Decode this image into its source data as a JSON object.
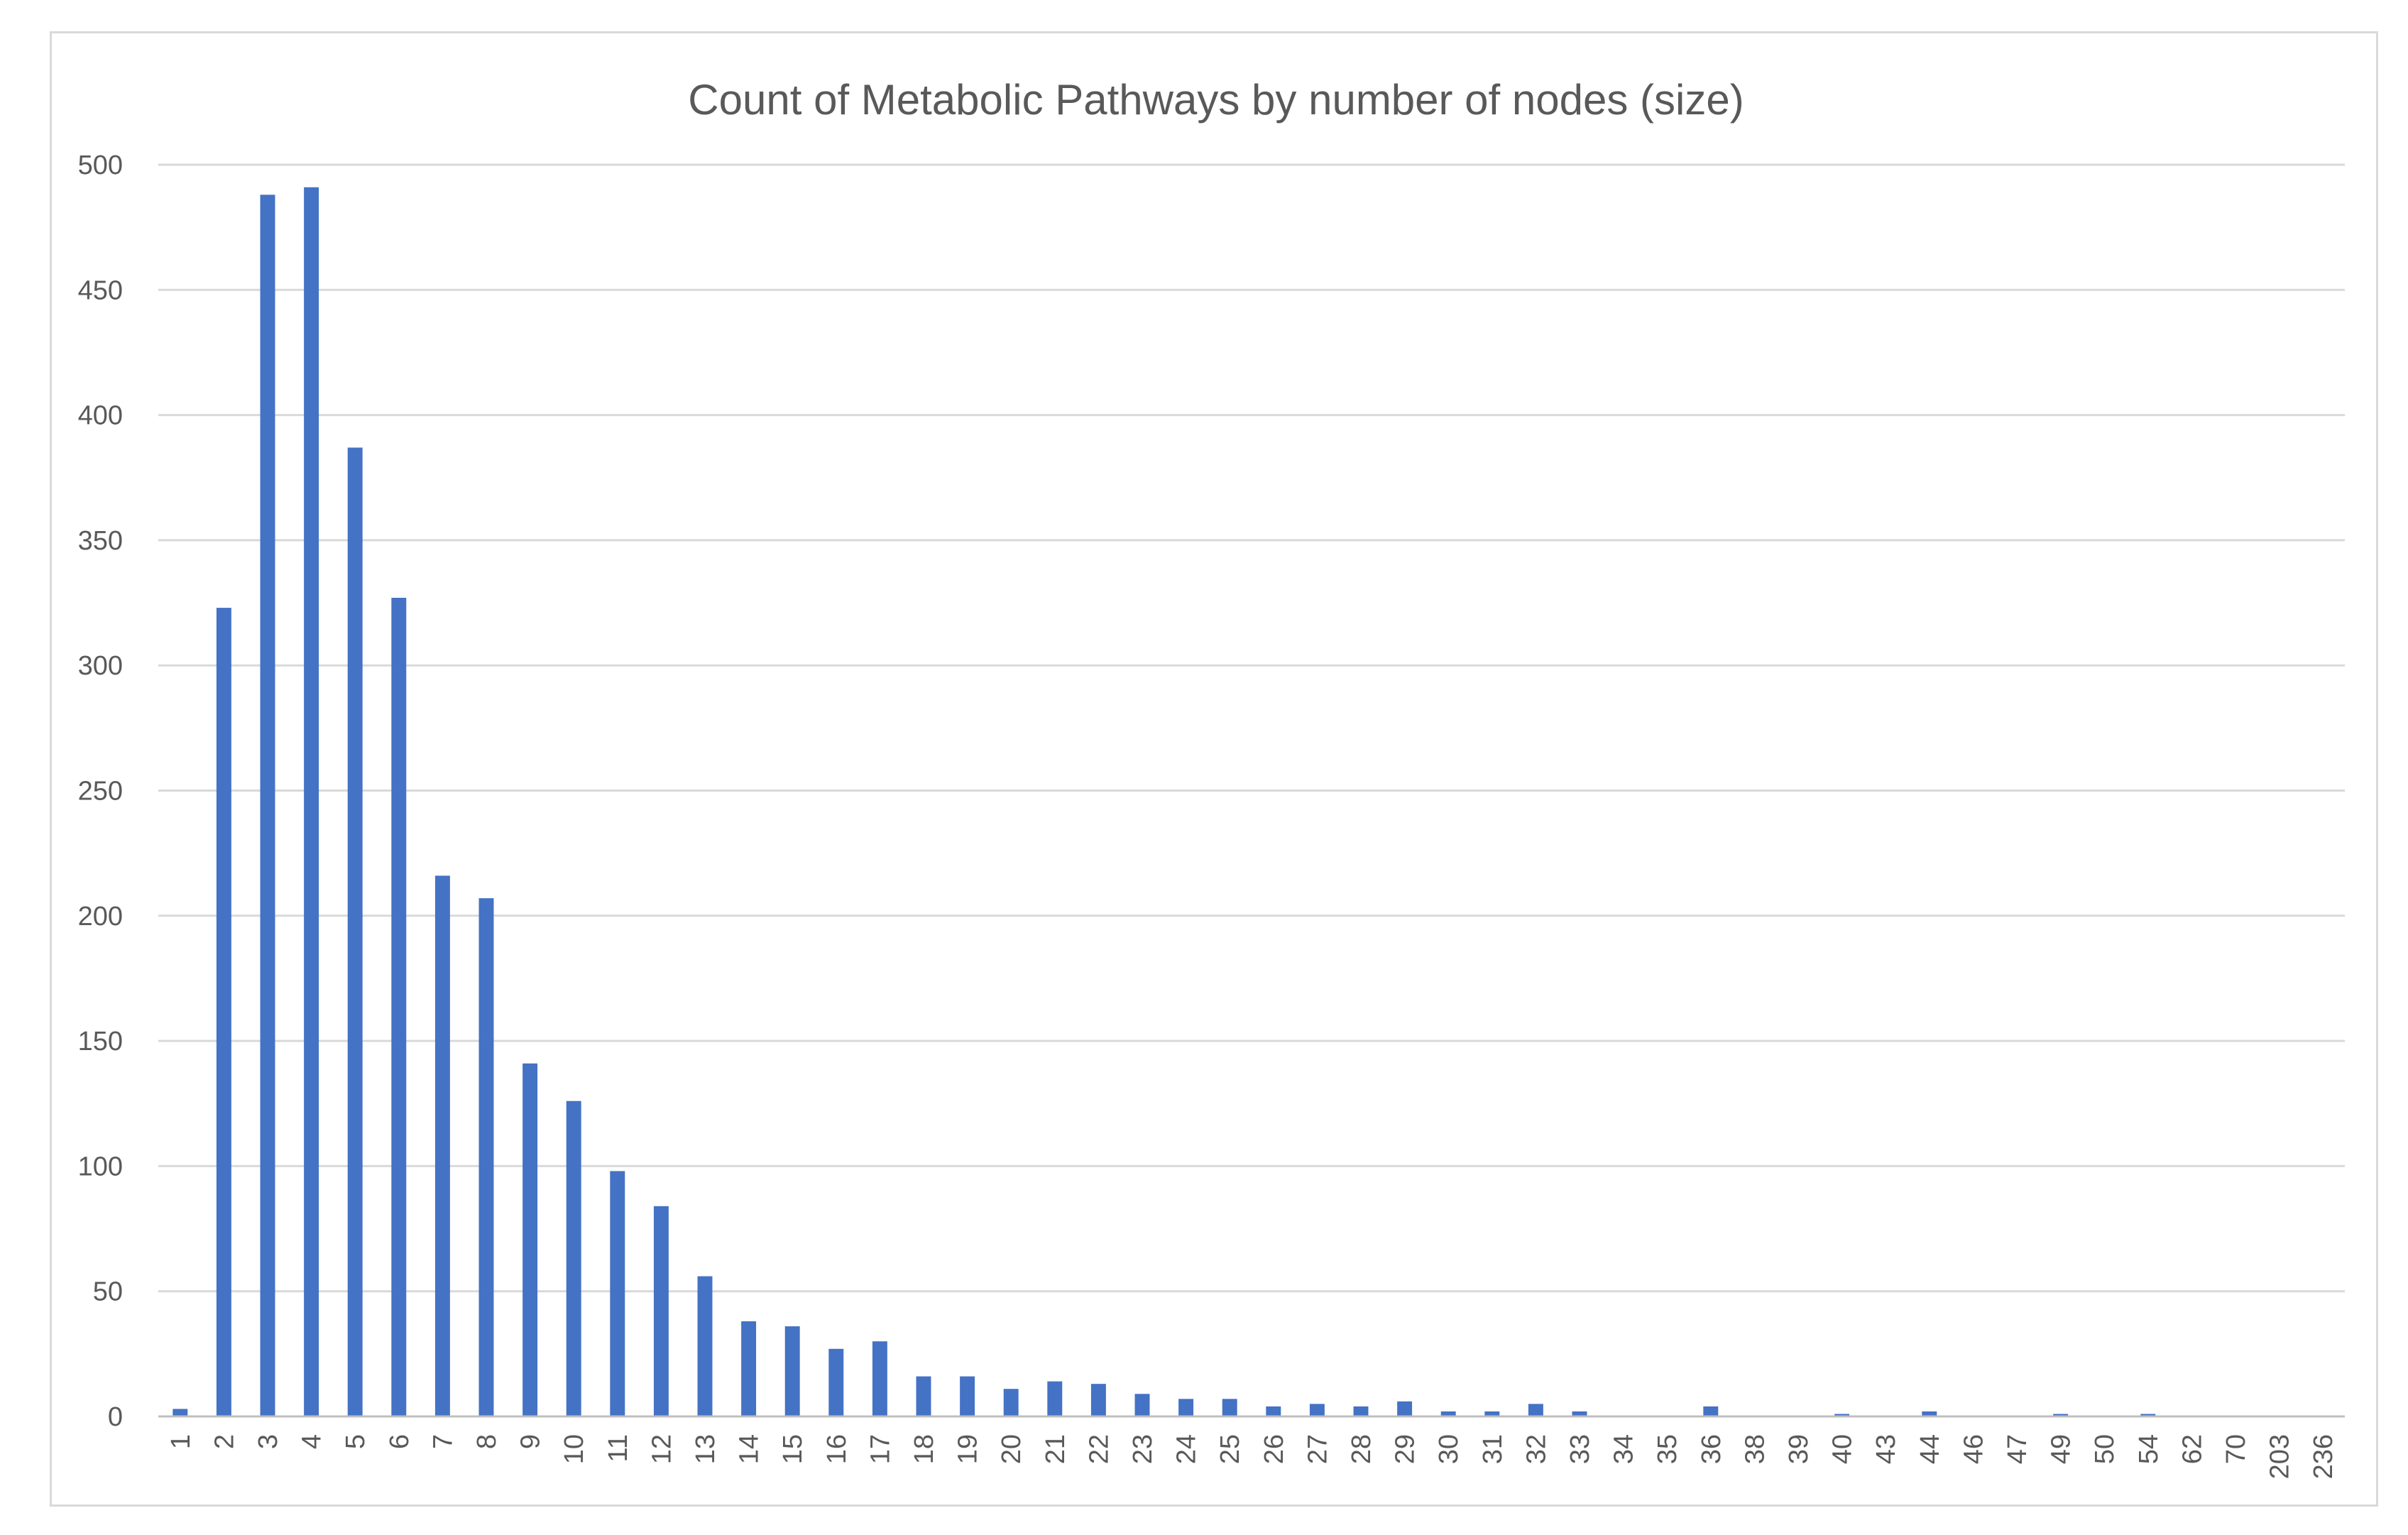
{
  "chart_data": {
    "type": "bar",
    "title": "Count of Metabolic Pathways by number of nodes (size)",
    "xlabel": "",
    "ylabel": "",
    "ylim": [
      0,
      500
    ],
    "yticks": [
      0,
      50,
      100,
      150,
      200,
      250,
      300,
      350,
      400,
      450,
      500
    ],
    "grid": true,
    "legend": "none",
    "bar_color": "#4472c4",
    "categories": [
      "1",
      "2",
      "3",
      "4",
      "5",
      "6",
      "7",
      "8",
      "9",
      "10",
      "11",
      "12",
      "13",
      "14",
      "15",
      "16",
      "17",
      "18",
      "19",
      "20",
      "21",
      "22",
      "23",
      "24",
      "25",
      "26",
      "27",
      "28",
      "29",
      "30",
      "31",
      "32",
      "33",
      "34",
      "35",
      "36",
      "38",
      "39",
      "40",
      "43",
      "44",
      "46",
      "47",
      "49",
      "50",
      "54",
      "62",
      "70",
      "203",
      "236"
    ],
    "values": [
      3,
      323,
      488,
      491,
      387,
      327,
      216,
      207,
      141,
      126,
      98,
      84,
      56,
      38,
      36,
      27,
      30,
      16,
      16,
      11,
      14,
      13,
      9,
      7,
      7,
      4,
      5,
      4,
      6,
      2,
      2,
      5,
      2,
      0,
      0,
      4,
      0,
      0,
      1,
      0,
      2,
      0,
      0,
      1,
      0,
      1,
      0,
      0,
      0,
      0
    ]
  }
}
